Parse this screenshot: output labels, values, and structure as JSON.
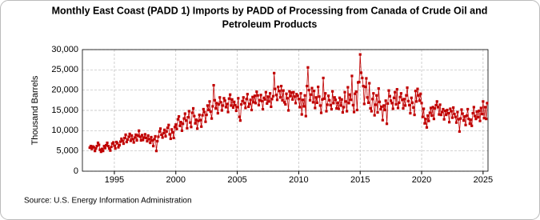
{
  "chart_data": {
    "type": "line",
    "title": [
      "Monthly East Coast (PADD 1) Imports by PADD of Processing from Canada of Crude Oil and",
      "Petroleum Products"
    ],
    "y_label": "Thousand Barrels",
    "source": "Source: U.S. Energy Information Administration",
    "xlim": [
      1992.4,
      2025.4
    ],
    "xticks": [
      1995,
      2000,
      2005,
      2010,
      2015,
      2020,
      2025
    ],
    "ylim": [
      0,
      30000
    ],
    "yticks": [
      {
        "value": 0,
        "label": "0"
      },
      {
        "value": 5000,
        "label": "5,000"
      },
      {
        "value": 10000,
        "label": "10,000"
      },
      {
        "value": 15000,
        "label": "15,000"
      },
      {
        "value": 20000,
        "label": "20,000"
      },
      {
        "value": 25000,
        "label": "25,000"
      },
      {
        "value": 30000,
        "label": "30,000"
      }
    ],
    "grid": true,
    "x": [
      1993.0,
      1993.08,
      1993.17,
      1993.25,
      1993.33,
      1993.42,
      1993.5,
      1993.58,
      1993.67,
      1993.75,
      1993.83,
      1993.92,
      1994.0,
      1994.08,
      1994.17,
      1994.25,
      1994.33,
      1994.42,
      1994.5,
      1994.58,
      1994.67,
      1994.75,
      1994.83,
      1994.92,
      1995.0,
      1995.08,
      1995.17,
      1995.25,
      1995.33,
      1995.42,
      1995.5,
      1995.58,
      1995.67,
      1995.75,
      1995.83,
      1995.92,
      1996.0,
      1996.08,
      1996.17,
      1996.25,
      1996.33,
      1996.42,
      1996.5,
      1996.58,
      1996.67,
      1996.75,
      1996.83,
      1996.92,
      1997.0,
      1997.08,
      1997.17,
      1997.25,
      1997.33,
      1997.42,
      1997.5,
      1997.58,
      1997.67,
      1997.75,
      1997.83,
      1997.92,
      1998.0,
      1998.08,
      1998.17,
      1998.25,
      1998.33,
      1998.42,
      1998.5,
      1998.58,
      1998.67,
      1998.75,
      1998.83,
      1998.92,
      1999.0,
      1999.08,
      1999.17,
      1999.25,
      1999.33,
      1999.42,
      1999.5,
      1999.58,
      1999.67,
      1999.75,
      1999.83,
      1999.92,
      2000.0,
      2000.08,
      2000.17,
      2000.25,
      2000.33,
      2000.42,
      2000.5,
      2000.58,
      2000.67,
      2000.75,
      2000.83,
      2000.92,
      2001.0,
      2001.08,
      2001.17,
      2001.25,
      2001.33,
      2001.42,
      2001.5,
      2001.58,
      2001.67,
      2001.75,
      2001.83,
      2001.92,
      2002.0,
      2002.08,
      2002.17,
      2002.25,
      2002.33,
      2002.42,
      2002.5,
      2002.58,
      2002.67,
      2002.75,
      2002.83,
      2002.92,
      2003.0,
      2003.08,
      2003.17,
      2003.25,
      2003.33,
      2003.42,
      2003.5,
      2003.58,
      2003.67,
      2003.75,
      2003.83,
      2003.92,
      2004.0,
      2004.08,
      2004.17,
      2004.25,
      2004.33,
      2004.42,
      2004.5,
      2004.58,
      2004.67,
      2004.75,
      2004.83,
      2004.92,
      2005.0,
      2005.08,
      2005.17,
      2005.25,
      2005.33,
      2005.42,
      2005.5,
      2005.58,
      2005.67,
      2005.75,
      2005.83,
      2005.92,
      2006.0,
      2006.08,
      2006.17,
      2006.25,
      2006.33,
      2006.42,
      2006.5,
      2006.58,
      2006.67,
      2006.75,
      2006.83,
      2006.92,
      2007.0,
      2007.08,
      2007.17,
      2007.25,
      2007.33,
      2007.42,
      2007.5,
      2007.58,
      2007.67,
      2007.75,
      2007.83,
      2007.92,
      2008.0,
      2008.08,
      2008.17,
      2008.25,
      2008.33,
      2008.42,
      2008.5,
      2008.58,
      2008.67,
      2008.75,
      2008.83,
      2008.92,
      2009.0,
      2009.08,
      2009.17,
      2009.25,
      2009.33,
      2009.42,
      2009.5,
      2009.58,
      2009.67,
      2009.75,
      2009.83,
      2009.92,
      2010.0,
      2010.08,
      2010.17,
      2010.25,
      2010.33,
      2010.42,
      2010.5,
      2010.58,
      2010.67,
      2010.75,
      2010.83,
      2010.92,
      2011.0,
      2011.08,
      2011.17,
      2011.25,
      2011.33,
      2011.42,
      2011.5,
      2011.58,
      2011.67,
      2011.75,
      2011.83,
      2011.92,
      2012.0,
      2012.08,
      2012.17,
      2012.25,
      2012.33,
      2012.42,
      2012.5,
      2012.58,
      2012.67,
      2012.75,
      2012.83,
      2012.92,
      2013.0,
      2013.08,
      2013.17,
      2013.25,
      2013.33,
      2013.42,
      2013.5,
      2013.58,
      2013.67,
      2013.75,
      2013.83,
      2013.92,
      2014.0,
      2014.08,
      2014.17,
      2014.25,
      2014.33,
      2014.42,
      2014.5,
      2014.58,
      2014.67,
      2014.75,
      2014.83,
      2014.92,
      2015.0,
      2015.08,
      2015.17,
      2015.25,
      2015.33,
      2015.42,
      2015.5,
      2015.58,
      2015.67,
      2015.75,
      2015.83,
      2015.92,
      2016.0,
      2016.08,
      2016.17,
      2016.25,
      2016.33,
      2016.42,
      2016.5,
      2016.58,
      2016.67,
      2016.75,
      2016.83,
      2016.92,
      2017.0,
      2017.08,
      2017.17,
      2017.25,
      2017.33,
      2017.42,
      2017.5,
      2017.58,
      2017.67,
      2017.75,
      2017.83,
      2017.92,
      2018.0,
      2018.08,
      2018.17,
      2018.25,
      2018.33,
      2018.42,
      2018.5,
      2018.58,
      2018.67,
      2018.75,
      2018.83,
      2018.92,
      2019.0,
      2019.08,
      2019.17,
      2019.25,
      2019.33,
      2019.42,
      2019.5,
      2019.58,
      2019.67,
      2019.75,
      2019.83,
      2019.92,
      2020.0,
      2020.08,
      2020.17,
      2020.25,
      2020.33,
      2020.42,
      2020.5,
      2020.58,
      2020.67,
      2020.75,
      2020.83,
      2020.92,
      2021.0,
      2021.08,
      2021.17,
      2021.25,
      2021.33,
      2021.42,
      2021.5,
      2021.58,
      2021.67,
      2021.75,
      2021.83,
      2021.92,
      2022.0,
      2022.08,
      2022.17,
      2022.25,
      2022.33,
      2022.42,
      2022.5,
      2022.58,
      2022.67,
      2022.75,
      2022.83,
      2022.92,
      2023.0,
      2023.08,
      2023.17,
      2023.25,
      2023.33,
      2023.42,
      2023.5,
      2023.58,
      2023.67,
      2023.75,
      2023.83,
      2023.92,
      2024.0,
      2024.08,
      2024.17,
      2024.25,
      2024.33,
      2024.42,
      2024.5,
      2024.58,
      2024.67,
      2024.75,
      2024.83,
      2024.92,
      2025.0,
      2025.08,
      2025.17,
      2025.25,
      2025.33
    ],
    "series": [
      {
        "color": "#c00000",
        "values": [
          5800,
          6200,
          5500,
          6100,
          5900,
          5000,
          5600,
          6200,
          7000,
          6500,
          5300,
          4800,
          5500,
          5000,
          6200,
          5700,
          6400,
          7000,
          6200,
          5600,
          5100,
          6000,
          6800,
          7100,
          6300,
          5600,
          7200,
          6900,
          5900,
          6400,
          7300,
          8000,
          7500,
          6800,
          8200,
          9000,
          7200,
          7800,
          8500,
          9200,
          7500,
          8800,
          7900,
          7100,
          8300,
          9000,
          7600,
          8800,
          10000,
          8500,
          7600,
          8900,
          7700,
          8300,
          9100,
          8200,
          7400,
          8800,
          7900,
          7000,
          8400,
          7600,
          6200,
          7900,
          8600,
          5000,
          7400,
          8500,
          9800,
          10500,
          9000,
          8300,
          9400,
          10200,
          8600,
          9800,
          10700,
          11400,
          9100,
          8000,
          10300,
          9600,
          8200,
          10900,
          11500,
          10400,
          12800,
          13500,
          11200,
          12100,
          10000,
          11700,
          13000,
          14200,
          12500,
          10600,
          13300,
          14800,
          12000,
          10900,
          14400,
          15500,
          13600,
          11800,
          12700,
          10500,
          12400,
          13900,
          12600,
          11000,
          13800,
          15300,
          14600,
          12200,
          13900,
          16200,
          15100,
          17200,
          14700,
          13000,
          16000,
          21200,
          17500,
          15500,
          16800,
          14300,
          16500,
          18200,
          17000,
          15000,
          16200,
          18000,
          17400,
          15800,
          16600,
          14600,
          17900,
          18900,
          16200,
          17700,
          15700,
          17100,
          16300,
          14900,
          15800,
          18000,
          13400,
          12500,
          16500,
          17300,
          18200,
          16800,
          15600,
          17800,
          19000,
          15900,
          16600,
          17600,
          15100,
          18300,
          17000,
          18600,
          16800,
          19600,
          18700,
          16300,
          17500,
          18800,
          17300,
          15300,
          18100,
          17700,
          19500,
          16700,
          18400,
          17200,
          19200,
          15900,
          17800,
          18500,
          24200,
          20300,
          18800,
          17600,
          20800,
          19800,
          18200,
          21000,
          17500,
          19900,
          17000,
          16500,
          19100,
          18000,
          15000,
          19700,
          18500,
          19400,
          17700,
          19500,
          18400,
          16800,
          19000,
          18600,
          17800,
          15800,
          19200,
          14000,
          17600,
          16000,
          18700,
          13600,
          21000,
          25600,
          20000,
          17500,
          18900,
          20500,
          17000,
          19800,
          15600,
          18200,
          16900,
          20800,
          18400,
          16200,
          14400,
          17700,
          23000,
          17900,
          19200,
          14800,
          16400,
          18600,
          17500,
          16300,
          15300,
          19700,
          16800,
          18200,
          17600,
          15500,
          16900,
          15400,
          18100,
          16200,
          17700,
          14500,
          15800,
          19500,
          17200,
          14800,
          20700,
          16800,
          18900,
          17600,
          23500,
          16300,
          14600,
          19100,
          19600,
          15100,
          21900,
          22000,
          28800,
          24300,
          23000,
          21000,
          16600,
          20800,
          22900,
          18200,
          16900,
          21700,
          15500,
          14800,
          17800,
          19200,
          13800,
          16400,
          18700,
          14500,
          20400,
          17100,
          15300,
          15900,
          12600,
          16200,
          15100,
          17400,
          11700,
          16700,
          19900,
          18500,
          17400,
          16800,
          15400,
          18100,
          19500,
          16500,
          20200,
          15600,
          16900,
          18300,
          19200,
          17600,
          15500,
          17800,
          16200,
          18700,
          20600,
          17300,
          16300,
          14300,
          18100,
          16900,
          15700,
          13900,
          19800,
          17200,
          20300,
          18700,
          17400,
          19100,
          16800,
          13400,
          15400,
          11800,
          12900,
          10800,
          13700,
          12400,
          14400,
          15600,
          13700,
          15800,
          12900,
          15500,
          16300,
          17200,
          15800,
          14000,
          16400,
          13900,
          14600,
          15300,
          12800,
          14900,
          13900,
          15100,
          14300,
          12100,
          15400,
          14800,
          13200,
          15700,
          14100,
          13400,
          12000,
          14600,
          12800,
          9800,
          13000,
          15200,
          14200,
          12500,
          13500,
          11400,
          13700,
          15300,
          12900,
          11700,
          12700,
          11200,
          14300,
          15800,
          13600,
          12900,
          14700,
          13300,
          14900,
          12400,
          15600,
          14100,
          17200,
          13100,
          15800,
          12900,
          16800
        ]
      }
    ]
  }
}
